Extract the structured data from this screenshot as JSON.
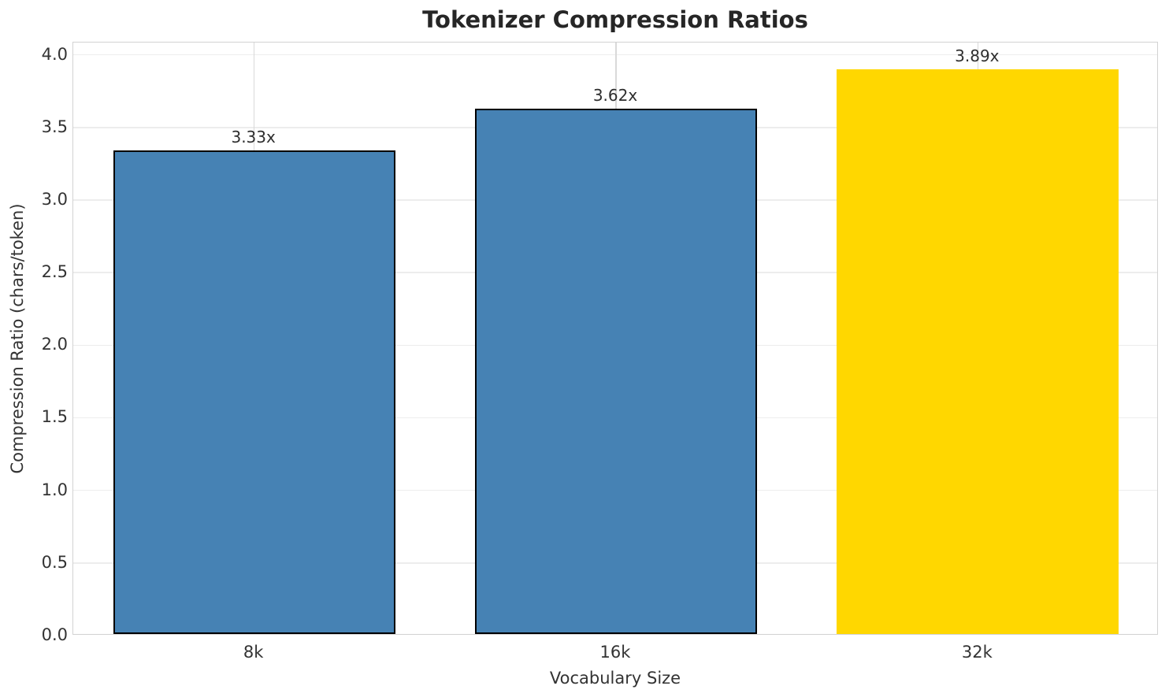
{
  "chart_data": {
    "type": "bar",
    "title": "Tokenizer Compression Ratios",
    "xlabel": "Vocabulary Size",
    "ylabel": "Compression Ratio (chars/token)",
    "categories": [
      "8k",
      "16k",
      "32k"
    ],
    "values": [
      3.33,
      3.62,
      3.89
    ],
    "value_labels": [
      "3.33x",
      "3.62x",
      "3.89x"
    ],
    "yticks": [
      0.0,
      0.5,
      1.0,
      1.5,
      2.0,
      2.5,
      3.0,
      3.5,
      4.0
    ],
    "ylim": [
      0,
      4.0845
    ],
    "grid": true,
    "legend": "none",
    "bar_width_fraction": 0.78,
    "bar_colors": [
      "#4682B4",
      "#4682B4",
      "#FFD700"
    ],
    "bar_edge_colors": [
      "#000000",
      "#000000",
      "none"
    ],
    "bar_edge_width": 2.5,
    "colors": {
      "title_text": "#262626",
      "tick_text": "#333333",
      "grid_h": "#ededed",
      "grid_v": "#d9d9d9",
      "spine": "#d2d2d2",
      "background": "#ffffff",
      "bar_blue": "#4682B4",
      "bar_gold": "#FFD700"
    }
  }
}
